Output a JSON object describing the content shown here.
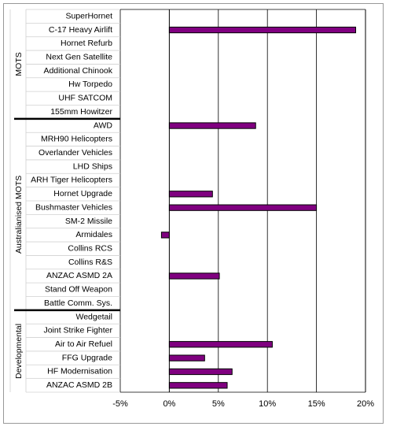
{
  "chart_data": {
    "type": "bar",
    "orientation": "horizontal",
    "categories": [
      "SuperHornet",
      "C-17 Heavy Airlift",
      "Hornet Refurb",
      "Next Gen Satellite",
      "Additional Chinook",
      "Hw Torpedo",
      "UHF SATCOM",
      "155mm Howitzer",
      "AWD",
      "MRH90 Helicopters",
      "Overlander Vehicles",
      "LHD Ships",
      "ARH Tiger Helicopters",
      "Hornet Upgrade",
      "Bushmaster Vehicles",
      "SM-2 Missile",
      "Armidales",
      "Collins RCS",
      "Collins R&S",
      "ANZAC ASMD 2A",
      "Stand Off Weapon",
      "Battle Comm. Sys.",
      "Wedgetail",
      "Joint Strike Fighter",
      "Air to Air Refuel",
      "FFG Upgrade",
      "HF Modernisation",
      "ANZAC ASMD 2B"
    ],
    "values": [
      0,
      19,
      0,
      0,
      0,
      0,
      0,
      0,
      8.8,
      0,
      0,
      0,
      0,
      4.4,
      15,
      0,
      -0.8,
      0,
      0,
      5.1,
      0,
      0,
      0,
      0,
      10.5,
      3.6,
      6.4,
      5.9
    ],
    "groups": [
      {
        "name": "MOTS",
        "start": 0,
        "end": 7
      },
      {
        "name": "Australianised MOTS",
        "start": 8,
        "end": 21
      },
      {
        "name": "Developmental",
        "start": 22,
        "end": 27
      }
    ],
    "xlim": [
      -5,
      20
    ],
    "xticks": [
      "-5%",
      "0%",
      "5%",
      "10%",
      "15%",
      "20%"
    ],
    "xtick_values": [
      -5,
      0,
      5,
      10,
      15,
      20
    ],
    "bar_color": "#800080",
    "grid": "vertical major lines",
    "legend": "none"
  }
}
